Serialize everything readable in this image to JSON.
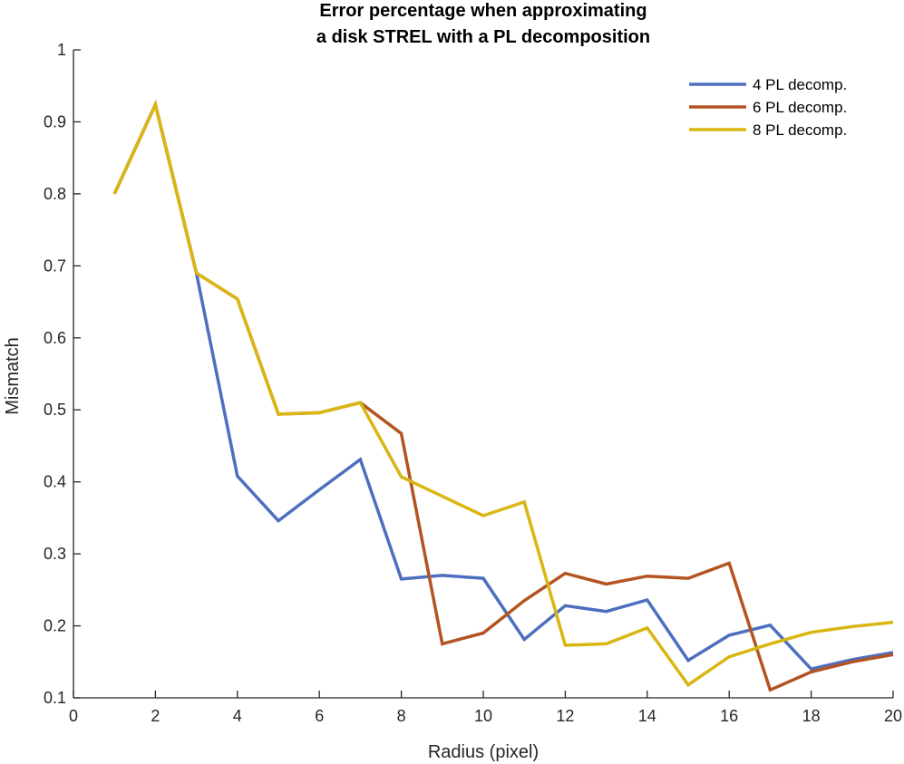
{
  "chart_data": {
    "type": "line",
    "title": [
      "Error percentage when approximating",
      "a disk STREL with a PL decomposition"
    ],
    "xlabel": "Radius (pixel)",
    "ylabel": "Mismatch",
    "xlim": [
      0,
      20
    ],
    "ylim": [
      0.1,
      1
    ],
    "xticks": [
      0,
      2,
      4,
      6,
      8,
      10,
      12,
      14,
      16,
      18,
      20
    ],
    "yticks": [
      0.1,
      0.2,
      0.3,
      0.4,
      0.5,
      0.6,
      0.7,
      0.8,
      0.9,
      1
    ],
    "ytick_labels": [
      "0.1",
      "0.2",
      "0.3",
      "0.4",
      "0.5",
      "0.6",
      "0.7",
      "0.8",
      "0.9",
      "1"
    ],
    "grid": false,
    "legend_position": "top-right",
    "x": [
      1,
      2,
      3,
      4,
      5,
      6,
      7,
      8,
      9,
      10,
      11,
      12,
      13,
      14,
      15,
      16,
      17,
      18,
      19,
      20
    ],
    "series": [
      {
        "name": "4 PL decomp.",
        "color": "#4e6fbf",
        "values": [
          0.8,
          0.924,
          0.69,
          0.408,
          0.346,
          0.389,
          0.431,
          0.265,
          0.27,
          0.266,
          0.181,
          0.228,
          0.22,
          0.236,
          0.152,
          0.187,
          0.201,
          0.14,
          0.153,
          0.163
        ]
      },
      {
        "name": "6 PL decomp.",
        "color": "#b35422",
        "values": [
          0.8,
          0.924,
          0.69,
          0.654,
          0.494,
          0.496,
          0.51,
          0.467,
          0.175,
          0.19,
          0.235,
          0.273,
          0.258,
          0.269,
          0.266,
          0.287,
          0.111,
          0.136,
          0.15,
          0.16
        ]
      },
      {
        "name": "8 PL decomp.",
        "color": "#d9b611",
        "values": [
          0.8,
          0.924,
          0.69,
          0.654,
          0.494,
          0.496,
          0.51,
          0.407,
          0.38,
          0.353,
          0.372,
          0.173,
          0.175,
          0.197,
          0.118,
          0.157,
          0.175,
          0.191,
          0.199,
          0.205
        ]
      }
    ]
  }
}
